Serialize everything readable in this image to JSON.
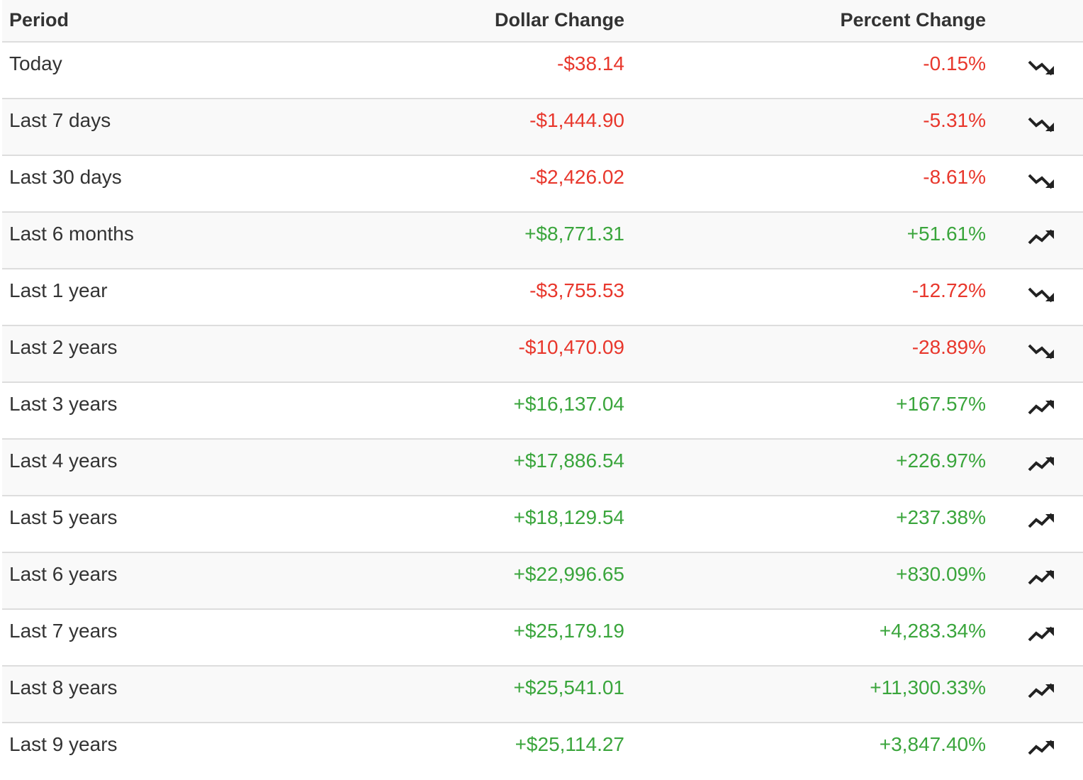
{
  "header": {
    "period": "Period",
    "dollar_change": "Dollar Change",
    "percent_change": "Percent Change"
  },
  "colors": {
    "negative": "#e8372c",
    "positive": "#3aa53c",
    "icon": "#222222"
  },
  "rows": [
    {
      "period": "Today",
      "dollar": "-$38.14",
      "percent": "-0.15%",
      "trend": "down",
      "icon": "trending-down-icon"
    },
    {
      "period": "Last 7 days",
      "dollar": "-$1,444.90",
      "percent": "-5.31%",
      "trend": "down",
      "icon": "trending-down-icon"
    },
    {
      "period": "Last 30 days",
      "dollar": "-$2,426.02",
      "percent": "-8.61%",
      "trend": "down",
      "icon": "trending-down-icon"
    },
    {
      "period": "Last 6 months",
      "dollar": "+$8,771.31",
      "percent": "+51.61%",
      "trend": "up",
      "icon": "trending-up-icon"
    },
    {
      "period": "Last 1 year",
      "dollar": "-$3,755.53",
      "percent": "-12.72%",
      "trend": "down",
      "icon": "trending-down-icon"
    },
    {
      "period": "Last 2 years",
      "dollar": "-$10,470.09",
      "percent": "-28.89%",
      "trend": "down",
      "icon": "trending-down-icon"
    },
    {
      "period": "Last 3 years",
      "dollar": "+$16,137.04",
      "percent": "+167.57%",
      "trend": "up",
      "icon": "trending-up-icon"
    },
    {
      "period": "Last 4 years",
      "dollar": "+$17,886.54",
      "percent": "+226.97%",
      "trend": "up",
      "icon": "trending-up-icon"
    },
    {
      "period": "Last 5 years",
      "dollar": "+$18,129.54",
      "percent": "+237.38%",
      "trend": "up",
      "icon": "trending-up-icon"
    },
    {
      "period": "Last 6 years",
      "dollar": "+$22,996.65",
      "percent": "+830.09%",
      "trend": "up",
      "icon": "trending-up-icon"
    },
    {
      "period": "Last 7 years",
      "dollar": "+$25,179.19",
      "percent": "+4,283.34%",
      "trend": "up",
      "icon": "trending-up-icon"
    },
    {
      "period": "Last 8 years",
      "dollar": "+$25,541.01",
      "percent": "+11,300.33%",
      "trend": "up",
      "icon": "trending-up-icon"
    },
    {
      "period": "Last 9 years",
      "dollar": "+$25,114.27",
      "percent": "+3,847.40%",
      "trend": "up",
      "icon": "trending-up-icon"
    }
  ]
}
